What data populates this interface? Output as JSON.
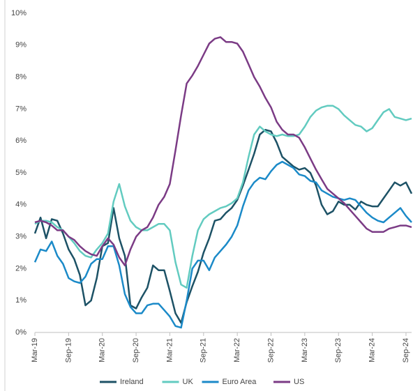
{
  "chart_data": {
    "type": "line",
    "categories": [
      "Mar-19",
      null,
      null,
      null,
      null,
      null,
      "Sep-19",
      null,
      null,
      null,
      null,
      null,
      "Mar-20",
      null,
      null,
      null,
      null,
      null,
      "Sep-20",
      null,
      null,
      null,
      null,
      null,
      "Mar-21",
      null,
      null,
      null,
      null,
      null,
      "Sep-21",
      null,
      null,
      null,
      null,
      null,
      "Mar-22",
      null,
      null,
      null,
      null,
      null,
      "Sep-22",
      null,
      null,
      null,
      null,
      null,
      "Mar-23",
      null,
      null,
      null,
      null,
      null,
      "Sep-23",
      null,
      null,
      null,
      null,
      null,
      "Mar-24",
      null,
      null,
      null,
      null,
      null,
      "Sep-24",
      null
    ],
    "series": [
      {
        "name": "Ireland",
        "color": "#1d5266",
        "values": [
          3.1,
          3.6,
          2.95,
          3.55,
          3.5,
          3.1,
          2.6,
          2.3,
          1.8,
          0.85,
          1.0,
          1.7,
          2.7,
          2.8,
          3.9,
          2.95,
          2.4,
          0.85,
          0.75,
          1.1,
          1.4,
          2.1,
          1.95,
          1.95,
          1.3,
          0.6,
          0.3,
          0.95,
          1.45,
          1.9,
          2.5,
          2.95,
          3.5,
          3.55,
          3.75,
          3.9,
          4.15,
          4.6,
          5.1,
          5.6,
          6.2,
          6.35,
          6.3,
          5.95,
          5.5,
          5.35,
          5.2,
          5.1,
          5.15,
          5.0,
          4.6,
          4.0,
          3.7,
          3.8,
          4.1,
          4.0,
          4.0,
          3.85,
          4.1,
          4.0,
          3.95,
          3.95,
          4.2,
          4.45,
          4.7,
          4.6,
          4.7,
          4.35
        ]
      },
      {
        "name": "UK",
        "color": "#62cbc0",
        "values": [
          3.4,
          3.5,
          3.5,
          3.45,
          3.3,
          3.2,
          3.0,
          2.8,
          2.55,
          2.4,
          2.35,
          2.6,
          2.8,
          3.1,
          4.1,
          4.65,
          3.95,
          3.5,
          3.3,
          3.2,
          3.2,
          3.3,
          3.4,
          3.4,
          3.2,
          2.2,
          1.5,
          1.4,
          2.4,
          3.2,
          3.55,
          3.7,
          3.8,
          3.9,
          3.95,
          4.05,
          4.2,
          4.7,
          5.5,
          6.2,
          6.45,
          6.3,
          6.2,
          6.15,
          6.2,
          6.15,
          6.15,
          6.2,
          6.45,
          6.75,
          6.95,
          7.05,
          7.1,
          7.1,
          7.0,
          6.8,
          6.65,
          6.5,
          6.45,
          6.3,
          6.4,
          6.65,
          6.9,
          7.0,
          6.75,
          6.7,
          6.65,
          6.7
        ]
      },
      {
        "name": "Euro Area",
        "color": "#1b8ac8",
        "values": [
          2.2,
          2.6,
          2.55,
          2.85,
          2.4,
          2.15,
          1.7,
          1.6,
          1.55,
          1.75,
          2.15,
          2.3,
          2.3,
          2.7,
          2.7,
          2.1,
          1.2,
          0.8,
          0.6,
          0.6,
          0.85,
          0.9,
          0.9,
          0.7,
          0.5,
          0.2,
          0.15,
          1.0,
          2.0,
          2.25,
          2.25,
          1.95,
          2.35,
          2.55,
          2.75,
          3.0,
          3.35,
          3.95,
          4.45,
          4.7,
          4.85,
          4.8,
          5.05,
          5.25,
          5.35,
          5.25,
          5.15,
          4.95,
          4.9,
          4.75,
          4.7,
          4.45,
          4.35,
          4.25,
          4.2,
          4.15,
          4.2,
          4.15,
          3.95,
          3.75,
          3.6,
          3.5,
          3.45,
          3.6,
          3.75,
          3.9,
          3.65,
          3.45
        ]
      },
      {
        "name": "US",
        "color": "#7b3b85",
        "values": [
          3.45,
          3.5,
          3.45,
          3.35,
          3.2,
          3.2,
          3.0,
          2.9,
          2.7,
          2.55,
          2.45,
          2.4,
          2.7,
          2.95,
          2.75,
          2.35,
          2.1,
          2.6,
          3.0,
          3.2,
          3.3,
          3.6,
          4.0,
          4.25,
          4.65,
          5.7,
          6.8,
          7.8,
          8.05,
          8.35,
          8.7,
          9.05,
          9.2,
          9.25,
          9.1,
          9.1,
          9.05,
          8.8,
          8.4,
          8.0,
          7.7,
          7.35,
          7.05,
          6.6,
          6.35,
          6.2,
          6.2,
          6.1,
          5.8,
          5.45,
          5.1,
          4.8,
          4.5,
          4.35,
          4.2,
          4.05,
          3.85,
          3.65,
          3.45,
          3.25,
          3.15,
          3.15,
          3.15,
          3.25,
          3.3,
          3.35,
          3.35,
          3.3
        ]
      }
    ],
    "ylim": [
      0,
      10
    ],
    "yticks": [
      {
        "value": 0,
        "label": "0%"
      },
      {
        "value": 1,
        "label": "1%"
      },
      {
        "value": 2,
        "label": "2%"
      },
      {
        "value": 3,
        "label": "3%"
      },
      {
        "value": 4,
        "label": "4%"
      },
      {
        "value": 5,
        "label": "5%"
      },
      {
        "value": 6,
        "label": "6%"
      },
      {
        "value": 7,
        "label": "7%"
      },
      {
        "value": 8,
        "label": "8%"
      },
      {
        "value": 9,
        "label": "9%"
      },
      {
        "value": 10,
        "label": "10%"
      }
    ],
    "grid": false,
    "legend": "bottom"
  }
}
